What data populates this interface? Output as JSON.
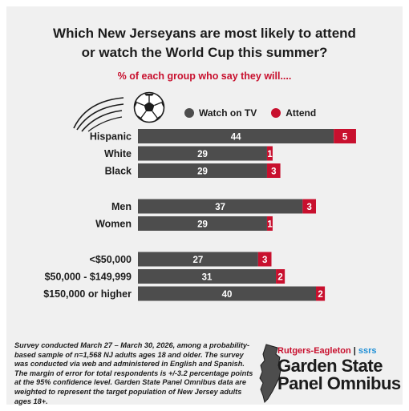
{
  "chart_data": {
    "type": "bar",
    "stacked": true,
    "orientation": "horizontal",
    "title": "Which New Jerseyans are most likely to attend or watch the World Cup this summer?",
    "title_lines": [
      "Which New Jerseyans are most likely to attend",
      "or watch the World Cup this summer?"
    ],
    "subtitle": "% of each group who say they will....",
    "categories": [
      "Hispanic",
      "White",
      "Black",
      "Men",
      "Women",
      "<$50,000",
      "$50,000 - $149,999",
      "$150,000 or higher"
    ],
    "groups": [
      [
        0,
        1,
        2
      ],
      [
        3,
        4
      ],
      [
        5,
        6,
        7
      ]
    ],
    "series": [
      {
        "name": "Watch on TV",
        "color": "#4d4d4d",
        "values": [
          44,
          29,
          29,
          37,
          29,
          27,
          31,
          40
        ]
      },
      {
        "name": "Attend",
        "color": "#c8102e",
        "values": [
          5,
          1,
          3,
          3,
          1,
          3,
          2,
          2
        ]
      }
    ],
    "legend_position": "top-right",
    "grid": false
  },
  "footer": {
    "note": "Survey conducted March 27 – March 30, 2026, among a probability-based sample of n=1,568 NJ adults ages 18 and older. The survey was conducted via web and administered in English and Spanish. The margin of error for total respondents is +/-3.2 percentage points at the 95% confidence level. Garden State Panel Omnibus data are weighted to represent the target population of New Jersey adults ages 18+.",
    "brand_org": "Rutgers-Eagleton",
    "brand_sep": " | ",
    "brand_partner": "ssrs",
    "brand_line1": "Garden State",
    "brand_line2": "Panel Omnibus"
  },
  "colors": {
    "accent": "#c8102e",
    "bar": "#4d4d4d",
    "background": "#f0f0f0"
  },
  "icons": [
    "soccer-ball-icon",
    "motion-lines-icon",
    "new-jersey-map-icon"
  ]
}
